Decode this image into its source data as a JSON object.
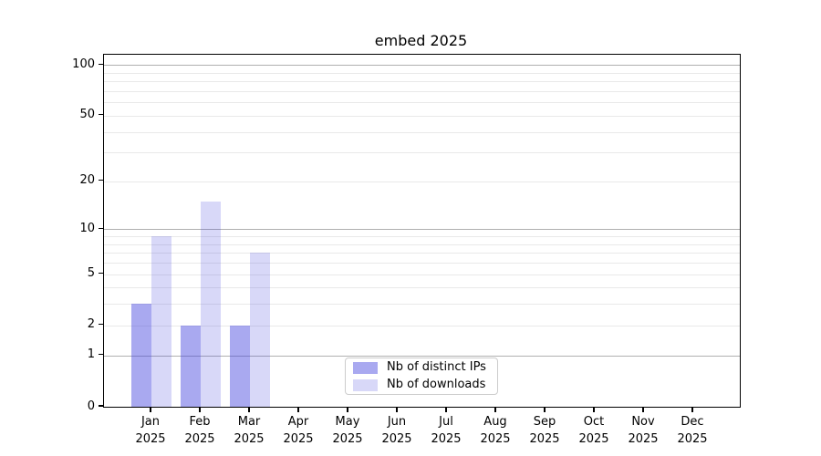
{
  "title": "embed 2025",
  "chart_data": {
    "type": "bar",
    "title": "embed 2025",
    "categories": [
      "Jan",
      "Feb",
      "Mar",
      "Apr",
      "May",
      "Jun",
      "Jul",
      "Aug",
      "Sep",
      "Oct",
      "Nov",
      "Dec"
    ],
    "category_year": "2025",
    "series": [
      {
        "name": "Nb of distinct IPs",
        "color": "rgba(60,60,220,0.44)",
        "values": [
          3,
          2,
          2,
          0,
          0,
          0,
          0,
          0,
          0,
          0,
          0,
          0
        ]
      },
      {
        "name": "Nb of downloads",
        "color": "rgba(60,60,220,0.20)",
        "values": [
          9,
          15,
          7,
          0,
          0,
          0,
          0,
          0,
          0,
          0,
          0,
          0
        ]
      }
    ],
    "yscale": "log1p",
    "yticks": [
      0,
      1,
      2,
      5,
      10,
      20,
      50,
      100
    ],
    "ylim": [
      0,
      115
    ],
    "major_gridlines": [
      1,
      10,
      100
    ],
    "minor_gridlines": [
      2,
      3,
      4,
      5,
      6,
      7,
      8,
      9,
      20,
      30,
      40,
      50,
      60,
      70,
      80,
      90
    ],
    "grid": true,
    "legend_position": "lower center",
    "xlabel": "",
    "ylabel": ""
  },
  "colors": {
    "grid_major": "#b0b0b0",
    "grid_minor": "#e9e9e9",
    "spine": "#000000",
    "background": "#ffffff"
  }
}
